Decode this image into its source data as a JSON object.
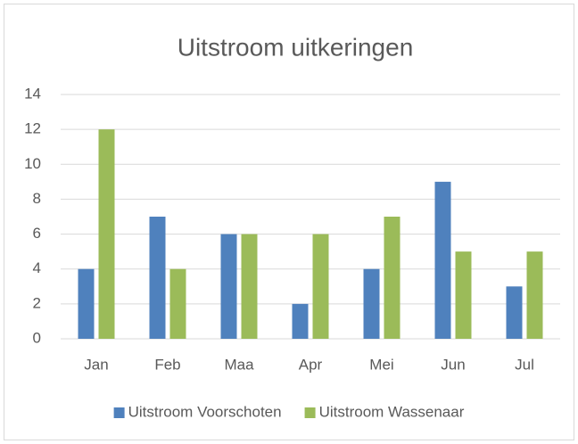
{
  "chart_data": {
    "type": "bar",
    "title": "Uitstroom uitkeringen",
    "categories": [
      "Jan",
      "Feb",
      "Maa",
      "Apr",
      "Mei",
      "Jun",
      "Jul"
    ],
    "series": [
      {
        "name": "Uitstroom Voorschoten",
        "color": "#4f81bd",
        "values": [
          4,
          7,
          6,
          2,
          4,
          9,
          3
        ]
      },
      {
        "name": "Uitstroom Wassenaar",
        "color": "#9bbb59",
        "values": [
          12,
          4,
          6,
          6,
          7,
          5,
          5
        ]
      }
    ],
    "ylim": [
      0,
      14
    ],
    "yticks": [
      0,
      2,
      4,
      6,
      8,
      10,
      12,
      14
    ],
    "grid": true,
    "legend": "bottom"
  }
}
